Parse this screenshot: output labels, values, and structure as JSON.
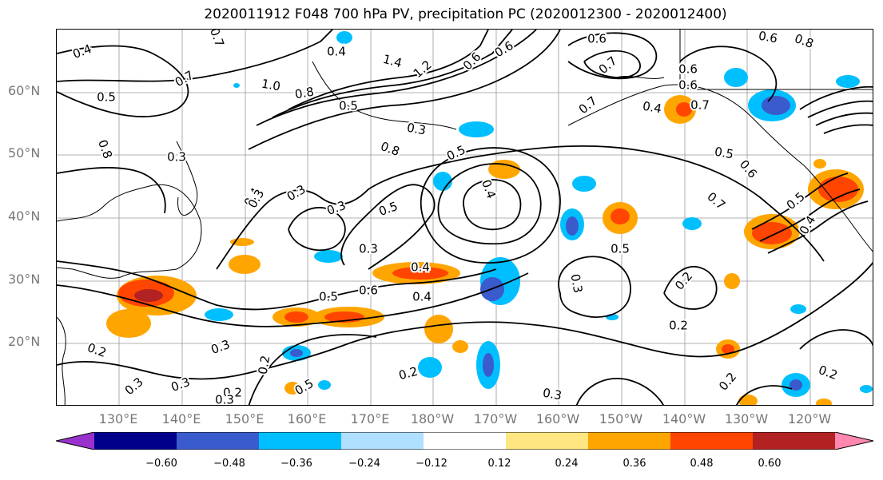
{
  "title": "2020011912 F048 700 hPa PV, precipitation PC (2020012300 - 2020012400)",
  "lat_labels": [
    "60°N",
    "50°N",
    "40°N",
    "30°N",
    "20°N"
  ],
  "lon_labels": [
    "130°E",
    "140°E",
    "150°E",
    "160°E",
    "170°E",
    "180°W",
    "170°W",
    "160°W",
    "150°W",
    "140°W",
    "130°W",
    "120°W"
  ],
  "colorbar": {
    "tick_labels": [
      "−0.60",
      "−0.48",
      "−0.36",
      "−0.24",
      "−0.12",
      "0.12",
      "0.24",
      "0.36",
      "0.48",
      "0.60"
    ],
    "colors": [
      "#9932cc",
      "#00008b",
      "#3a5bcc",
      "#00bfff",
      "#b0e0ff",
      "#ffffff",
      "#ffe680",
      "#ffa500",
      "#ff4500",
      "#b22222",
      "#ff88b0"
    ]
  },
  "contour_labels": [
    "0.4",
    "0.7",
    "0.7",
    "0.5",
    "1.0",
    "0.8",
    "0.5",
    "1.4",
    "1.2",
    "0.6",
    "0.6",
    "0.7",
    "0.6",
    "0.6",
    "0.8",
    "0.6",
    "0.7",
    "0.4",
    "0.4",
    "0.3",
    "0.3",
    "0.6",
    "0.7",
    "0.5",
    "0.5",
    "0.8",
    "0.4",
    "0.3",
    "0.5",
    "0.4",
    "0.3",
    "0.8",
    "0.7",
    "0.6",
    "0.5",
    "0.4",
    "0.5",
    "0.4",
    "0.3",
    "0.3",
    "0.6",
    "0.5",
    "0.4",
    "0.3",
    "0.2",
    "0.2",
    "0.2",
    "0.3",
    "0.2",
    "0.3",
    "0.2",
    "0.3",
    "0.3",
    "0.2",
    "0.2",
    "0.2",
    "0.3",
    "0.5"
  ]
}
